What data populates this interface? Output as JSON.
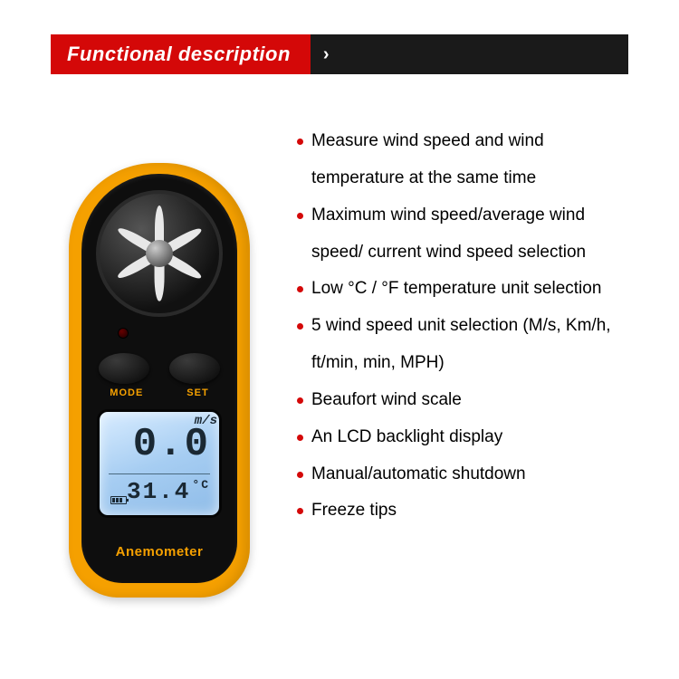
{
  "header": {
    "title": "Functional description",
    "title_bg": "#d40808",
    "title_color": "#ffffff",
    "bar_bg": "#1a1a1a",
    "chevron": "›"
  },
  "device": {
    "shell_color": "#f5a000",
    "body_color": "#0e0e0e",
    "button_labels": {
      "left": "MODE",
      "right": "SET"
    },
    "lcd": {
      "main_value": "0.0",
      "main_unit": "m/s",
      "temp_value": "31.4",
      "temp_unit": "°C",
      "bg_color": "#b8d9f5",
      "text_color": "#1a2833"
    },
    "label": "Anemometer",
    "fan_blade_count": 6
  },
  "features": {
    "bullet_color": "#d40808",
    "text_color": "#000000",
    "fontsize": 19,
    "items": [
      "Measure wind speed and wind temperature at the same time",
      "Maximum wind speed/average wind speed/ current wind speed selection",
      "Low °C / °F temperature unit selection",
      "5 wind speed unit selection (M/s, Km/h, ft/min, min, MPH)",
      "Beaufort wind scale",
      "An LCD backlight display",
      "Manual/automatic shutdown",
      "Freeze tips"
    ]
  }
}
